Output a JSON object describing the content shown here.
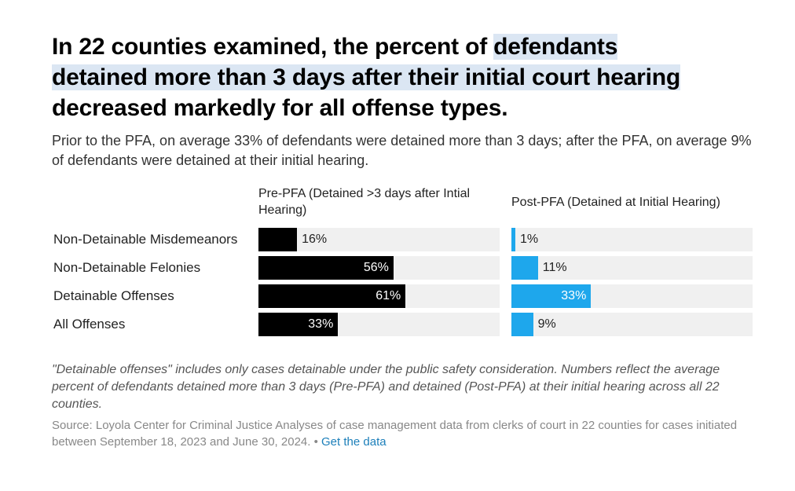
{
  "title_parts": {
    "before": "In 22 counties examined, the percent of ",
    "highlight1": "defendants",
    "highlight2": "detained more than 3 days after their initial court hearing",
    "after": "decreased markedly for all offense types."
  },
  "subtitle": "Prior to the PFA, on average 33% of defendants were detained more than 3 days; after the PFA, on average 9% of defendants were detained at their initial hearing.",
  "note": "\"Detainable offenses\" includes only cases detainable under the public safety consideration. Numbers reflect the average percent of defendants detained more than 3 days (Pre-PFA) and detained (Post-PFA) at their initial hearing across all 22 counties.",
  "source": {
    "text": "Source: Loyola Center for Criminal Justice Analyses of case management data from clerks of court in 22 counties for cases initiated between September 18, 2023 and June 30, 2024.",
    "separator": " • ",
    "link_label": "Get the data"
  },
  "colors": {
    "pre": "#000000",
    "post": "#1ea7ec",
    "track": "#f0f0f0"
  },
  "chart_data": {
    "type": "bar",
    "orientation": "horizontal",
    "categories": [
      "Non-Detainable Misdemeanors",
      "Non-Detainable Felonies",
      "Detainable Offenses",
      "All Offenses"
    ],
    "series": [
      {
        "name": "Pre-PFA (Detained >3 days after Intial Hearing)",
        "values": [
          16,
          56,
          61,
          33
        ],
        "labels": [
          "16%",
          "56%",
          "61%",
          "33%"
        ]
      },
      {
        "name": "Post-PFA (Detained at Initial Hearing)",
        "values": [
          1,
          11,
          33,
          9
        ],
        "labels": [
          "1%",
          "11%",
          "33%",
          "9%"
        ]
      }
    ],
    "xlim": [
      0,
      100
    ],
    "unit": "%"
  }
}
